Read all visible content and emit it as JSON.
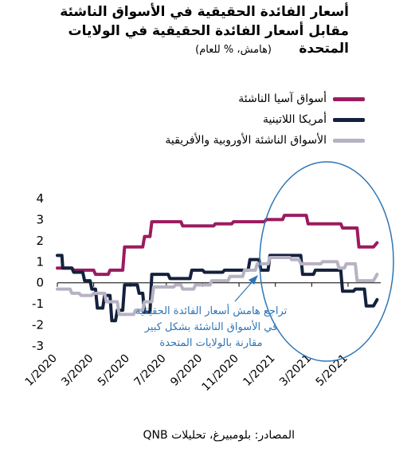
{
  "title_line1": "أسعار الفائدة الحقيقية في الأسواق الناشئة",
  "title_line2": "مقابل أسعار الفائدة الحقيقية في الولايات المتحدة",
  "subtitle": "(هامش، % للعام)",
  "source": "المصادر: بلومبيرغ، تحليلات QNB",
  "colors": {
    "asia": "#9b1b5f",
    "latam": "#14213d",
    "cee": "#b7b2c3",
    "annotation": "#2e75b6"
  },
  "chart_data": {
    "type": "line",
    "title": "أسعار الفائدة الحقيقية في الأسواق الناشئة مقابل أسعار الفائدة الحقيقية في الولايات المتحدة",
    "subtitle": "(هامش، % للعام)",
    "ylim": [
      -3,
      4
    ],
    "yticks": [
      4,
      3,
      2,
      1,
      0,
      -1,
      -2,
      -3
    ],
    "ytick_labels": [
      "4",
      "3",
      "2",
      "1",
      "0",
      "-1",
      "-2",
      "-3"
    ],
    "xlim": [
      0,
      17.8
    ],
    "xticks": [
      0,
      2,
      4,
      6,
      8,
      10,
      12,
      14,
      16
    ],
    "xtick_labels": [
      "1/2020",
      "3/2020",
      "5/2020",
      "7/2020",
      "9/2020",
      "11/2020",
      "1/2021",
      "3/2021",
      "5/2021"
    ],
    "legend_position": "top",
    "grid": false,
    "series": [
      {
        "name": "أسواق آسيا الناشئة",
        "color_key": "asia",
        "x": [
          0,
          0.8,
          0.9,
          2.0,
          2.1,
          2.8,
          2.9,
          3.6,
          3.7,
          4.7,
          4.8,
          5.1,
          5.2,
          6.8,
          6.9,
          8.6,
          8.7,
          9.6,
          9.7,
          11.4,
          11.5,
          12.4,
          12.5,
          13.7,
          13.8,
          15.6,
          15.7,
          16.5,
          16.6,
          17.4,
          17.6
        ],
        "y": [
          0.7,
          0.7,
          0.6,
          0.6,
          0.4,
          0.4,
          0.6,
          0.6,
          1.7,
          1.7,
          2.2,
          2.2,
          2.9,
          2.9,
          2.7,
          2.7,
          2.8,
          2.8,
          2.9,
          2.9,
          3.0,
          3.0,
          3.2,
          3.2,
          2.8,
          2.8,
          2.6,
          2.6,
          1.7,
          1.7,
          1.9
        ]
      },
      {
        "name": "أمريكا اللاتينية",
        "color_key": "latam",
        "x": [
          0,
          0.25,
          0.3,
          0.8,
          0.9,
          1.4,
          1.5,
          1.8,
          1.9,
          2.1,
          2.2,
          2.5,
          2.6,
          2.9,
          3.0,
          3.2,
          3.3,
          3.6,
          3.7,
          4.4,
          4.5,
          4.7,
          4.8,
          5.1,
          5.2,
          6.1,
          6.2,
          7.3,
          7.4,
          8.0,
          8.1,
          9.1,
          9.2,
          10.5,
          10.6,
          11.1,
          11.2,
          11.6,
          11.7,
          13.4,
          13.5,
          14.1,
          14.2,
          15.6,
          15.7,
          16.3,
          16.4,
          16.9,
          17.0,
          17.4,
          17.6
        ],
        "y": [
          1.3,
          1.3,
          0.7,
          0.7,
          0.5,
          0.5,
          0.1,
          0.1,
          -0.3,
          -0.3,
          -1.2,
          -1.2,
          -0.6,
          -0.6,
          -1.8,
          -1.8,
          -1.3,
          -1.3,
          -0.1,
          -0.1,
          -0.5,
          -0.5,
          -1.4,
          -1.4,
          0.4,
          0.4,
          0.2,
          0.2,
          0.6,
          0.6,
          0.5,
          0.5,
          0.6,
          0.6,
          1.1,
          1.1,
          0.6,
          0.6,
          1.3,
          1.3,
          0.4,
          0.4,
          0.6,
          0.6,
          -0.4,
          -0.4,
          -0.3,
          -0.3,
          -1.1,
          -1.1,
          -0.8
        ]
      },
      {
        "name": "الأسواق الناشئة الأوروبية والأفريقية",
        "color_key": "cee",
        "x": [
          0,
          0.7,
          0.8,
          1.2,
          1.3,
          1.9,
          2.0,
          2.6,
          2.7,
          3.3,
          3.4,
          4.2,
          4.3,
          4.7,
          4.8,
          5.2,
          5.3,
          6.4,
          6.5,
          6.8,
          6.9,
          7.5,
          7.6,
          8.4,
          8.5,
          9.4,
          9.5,
          10.2,
          10.3,
          10.9,
          11.0,
          11.6,
          11.7,
          12.8,
          12.9,
          13.3,
          13.4,
          14.5,
          14.6,
          15.4,
          15.5,
          15.8,
          15.9,
          16.4,
          16.5,
          17.4,
          17.6
        ],
        "y": [
          -0.3,
          -0.3,
          -0.5,
          -0.5,
          -0.6,
          -0.6,
          -0.5,
          -0.5,
          -0.9,
          -0.9,
          -1.5,
          -1.5,
          -1.3,
          -1.3,
          -0.9,
          -0.9,
          -0.2,
          -0.2,
          -0.1,
          -0.1,
          -0.3,
          -0.3,
          -0.1,
          -0.1,
          0.1,
          0.1,
          0.3,
          0.3,
          0.6,
          0.6,
          0.9,
          0.9,
          1.2,
          1.2,
          1.1,
          1.1,
          0.9,
          0.9,
          1.0,
          1.0,
          0.7,
          0.7,
          0.9,
          0.9,
          0.1,
          0.1,
          0.4
        ]
      }
    ],
    "annotation": {
      "lines": [
        "تراجع هامش أسعار الفائدة الحقيقية",
        "في الأسواق الناشئة بشكل كبير",
        "مقارنة بالولايات المتحدة"
      ]
    }
  }
}
